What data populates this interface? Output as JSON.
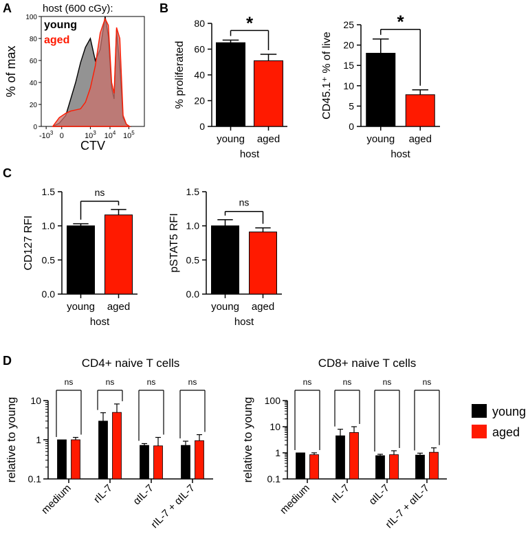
{
  "figure": {
    "panel_labels": [
      "A",
      "B",
      "C",
      "D"
    ],
    "colors": {
      "young": "#000000",
      "aged": "#ff1a00",
      "aged_fill": "#c9716c",
      "young_fill": "#808080"
    }
  },
  "chart_data": [
    {
      "id": "A",
      "type": "area",
      "title": "host (600 cGy):",
      "xlabel": "CTV",
      "ylabel": "% of max",
      "x_scale": "biexponential",
      "x_tick_labels": [
        "-10^3",
        "0",
        "10^3",
        "10^4",
        "10^5"
      ],
      "y_ticks": [
        0,
        20,
        40,
        60,
        80,
        100
      ],
      "ylim": [
        0,
        100
      ],
      "legend": [
        "young",
        "aged"
      ],
      "series": [
        {
          "name": "young",
          "x": [
            -0.4,
            0.0,
            0.4,
            0.7,
            1.0,
            1.3,
            1.6,
            1.9,
            2.2,
            2.5,
            2.8,
            3.0,
            3.2,
            3.35,
            3.5,
            3.7,
            3.9,
            4.1,
            4.3
          ],
          "values": [
            0,
            3,
            10,
            25,
            40,
            58,
            72,
            80,
            60,
            70,
            100,
            82,
            35,
            25,
            88,
            55,
            8,
            2,
            0
          ]
        },
        {
          "name": "aged",
          "x": [
            -0.4,
            0.0,
            0.4,
            0.7,
            1.0,
            1.3,
            1.6,
            1.9,
            2.2,
            2.5,
            2.8,
            3.0,
            3.2,
            3.35,
            3.5,
            3.7,
            3.9,
            4.1,
            4.3
          ],
          "values": [
            0,
            8,
            12,
            14,
            15,
            16,
            22,
            35,
            55,
            85,
            98,
            92,
            40,
            30,
            90,
            80,
            10,
            2,
            0
          ]
        }
      ]
    },
    {
      "id": "B1",
      "type": "bar",
      "categories": [
        "young",
        "aged"
      ],
      "values": [
        65,
        51
      ],
      "errors": [
        2,
        5
      ],
      "xlabel": "host",
      "ylabel": "% proliferated",
      "ylim": [
        0,
        80
      ],
      "y_ticks": [
        0,
        20,
        40,
        60,
        80
      ],
      "significance": "*"
    },
    {
      "id": "B2",
      "type": "bar",
      "categories": [
        "young",
        "aged"
      ],
      "values": [
        18,
        7.8
      ],
      "errors": [
        3.5,
        1.2
      ],
      "xlabel": "host",
      "ylabel": "CD45.1⁺ % of live",
      "ylim": [
        0,
        25
      ],
      "y_ticks": [
        0,
        5,
        10,
        15,
        20,
        25
      ],
      "significance": "*"
    },
    {
      "id": "C1",
      "type": "bar",
      "categories": [
        "young",
        "aged"
      ],
      "values": [
        1.0,
        1.16
      ],
      "errors": [
        0.03,
        0.08
      ],
      "xlabel": "host",
      "ylabel": "CD127 RFI",
      "ylim": [
        0,
        1.5
      ],
      "y_ticks": [
        0.0,
        0.5,
        1.0,
        1.5
      ],
      "significance": "ns"
    },
    {
      "id": "C2",
      "type": "bar",
      "categories": [
        "young",
        "aged"
      ],
      "values": [
        1.0,
        0.91
      ],
      "errors": [
        0.09,
        0.06
      ],
      "xlabel": "host",
      "ylabel": "pSTAT5 RFI",
      "ylim": [
        0,
        1.5
      ],
      "y_ticks": [
        0.0,
        0.5,
        1.0,
        1.5
      ],
      "significance": "ns"
    },
    {
      "id": "D1",
      "type": "bar",
      "title": "CD4+ naive T cells",
      "ylabel": "relative to young",
      "y_scale": "log",
      "ylim": [
        0.1,
        10
      ],
      "y_ticks": [
        0.1,
        1,
        10
      ],
      "categories": [
        "medium",
        "rIL-7",
        "αIL-7",
        "rIL-7 + αIL-7"
      ],
      "series": [
        {
          "name": "young",
          "values": [
            1.0,
            3.0,
            0.72,
            0.72
          ],
          "errors": [
            0,
            1.9,
            0.08,
            0.2
          ]
        },
        {
          "name": "aged",
          "values": [
            1.0,
            5.0,
            0.7,
            0.95
          ],
          "errors": [
            0.15,
            3.2,
            0.45,
            0.4
          ]
        }
      ],
      "significance": [
        "ns",
        "ns",
        "ns",
        "ns"
      ]
    },
    {
      "id": "D2",
      "type": "bar",
      "title": "CD8+ naive T cells",
      "ylabel": "relative to young",
      "y_scale": "log",
      "ylim": [
        0.1,
        100
      ],
      "y_ticks": [
        0.1,
        1,
        10,
        100
      ],
      "categories": [
        "medium",
        "rIL-7",
        "αIL-7",
        "rIL-7 + αIL-7"
      ],
      "series": [
        {
          "name": "young",
          "values": [
            1.0,
            4.5,
            0.78,
            0.82
          ],
          "errors": [
            0,
            3.5,
            0.1,
            0.15
          ]
        },
        {
          "name": "aged",
          "values": [
            0.85,
            6.0,
            0.85,
            1.05
          ],
          "errors": [
            0.15,
            4.0,
            0.35,
            0.5
          ]
        }
      ],
      "significance": [
        "ns",
        "ns",
        "ns",
        "ns"
      ]
    }
  ],
  "legend_D": [
    "young",
    "aged"
  ]
}
